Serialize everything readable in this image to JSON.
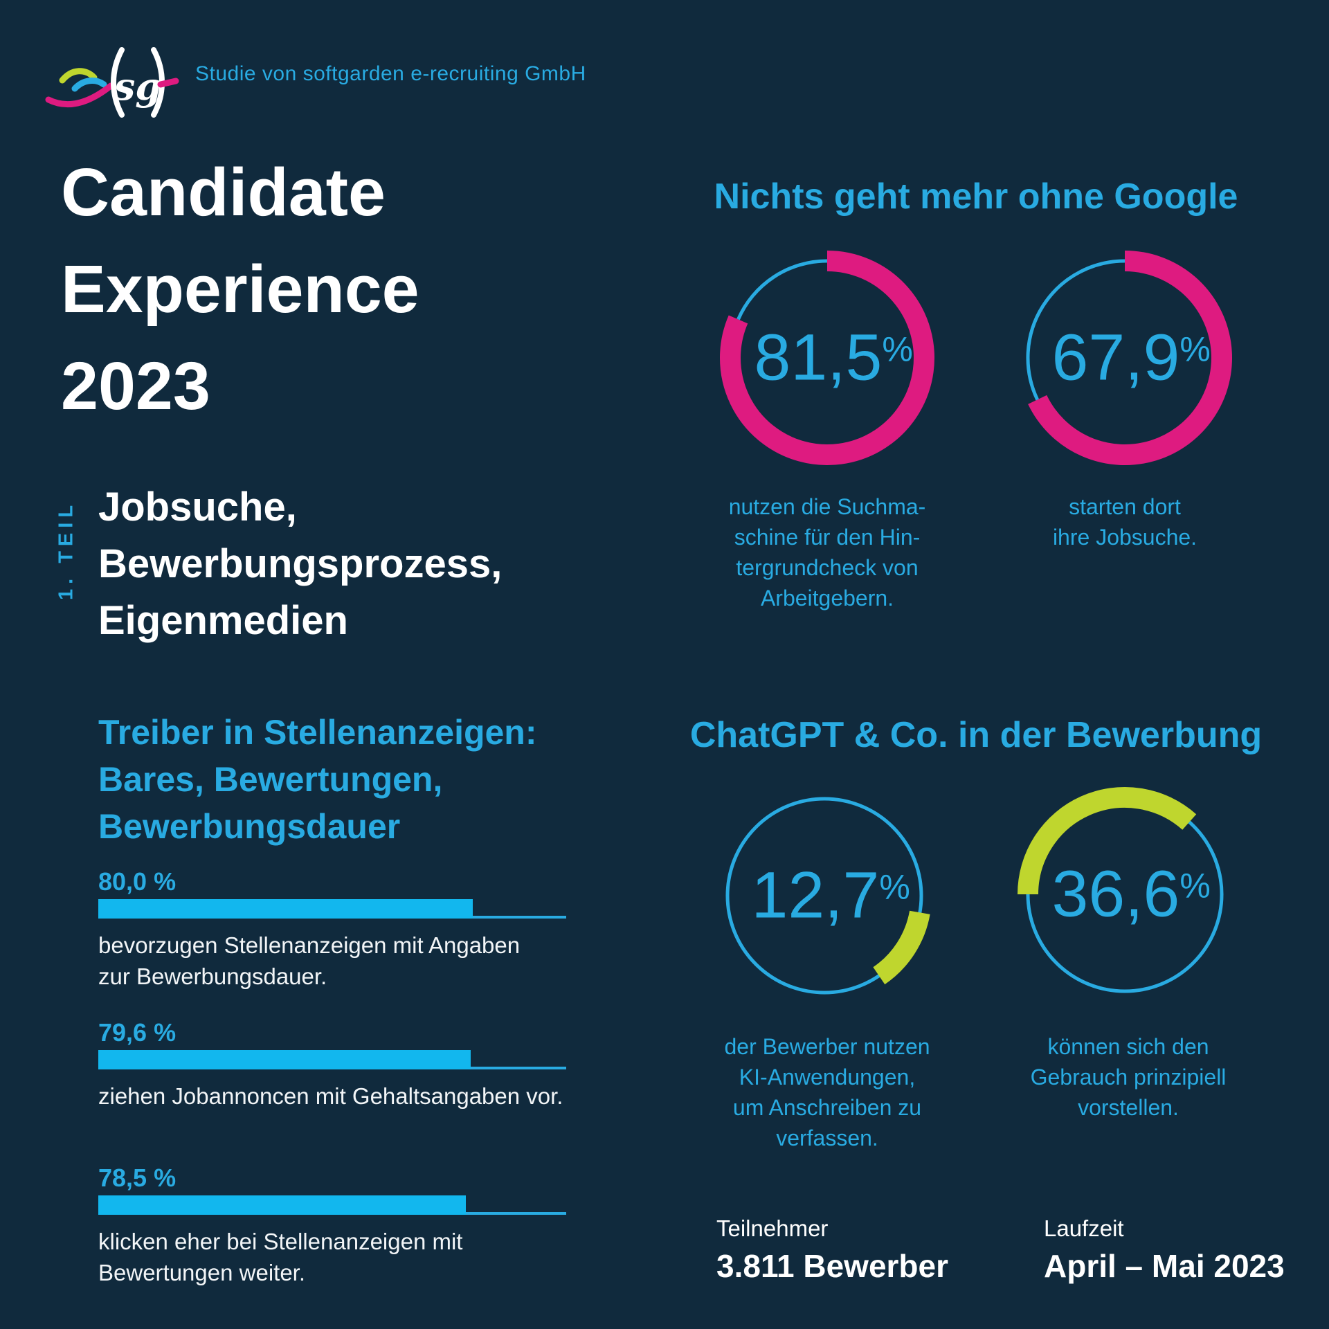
{
  "header": {
    "logo_text": "sg",
    "byline": "Studie von softgarden e-recruiting GmbH"
  },
  "title_lines": [
    "Candidate",
    "Experience",
    "2023"
  ],
  "part_label": "1. TEIL",
  "subtitle_lines": [
    "Jobsuche,",
    "Bewerbungsprozess,",
    "Eigenmedien"
  ],
  "colors": {
    "background": "#102A3D",
    "blue": "#29ABE2",
    "bar_blue": "#12B7EE",
    "pink": "#DE1B80",
    "green": "#BFD62E",
    "white": "#FFFFFF"
  },
  "google": {
    "heading": "Nichts geht mehr ohne Google",
    "donuts": [
      {
        "value": "81,5",
        "unit": "%",
        "pct": 81.5,
        "start_deg": 0,
        "mode": "value-thick-remainder-thin",
        "ring_color": "#DE1B80",
        "caption_lines": [
          "nutzen die Suchma-",
          "schine für den Hin-",
          "tergrundcheck von",
          "Arbeitgebern."
        ]
      },
      {
        "value": "67,9",
        "unit": "%",
        "pct": 67.9,
        "start_deg": 0,
        "mode": "value-thick-remainder-thin",
        "ring_color": "#DE1B80",
        "caption_lines": [
          "starten dort",
          "ihre Jobsuche."
        ]
      }
    ]
  },
  "bars": {
    "heading_lines": [
      "Treiber in Stellenanzeigen:",
      "Bares, Bewertungen,",
      "Bewerbungsdauer"
    ],
    "items": [
      {
        "label": "80,0 %",
        "pct": 80.0,
        "caption_lines": [
          "bevorzugen Stellenanzeigen mit Angaben",
          "zur Bewerbungsdauer."
        ]
      },
      {
        "label": "79,6 %",
        "pct": 79.6,
        "caption_lines": [
          "ziehen Jobannoncen mit Gehaltsangaben vor."
        ]
      },
      {
        "label": "78,5 %",
        "pct": 78.5,
        "caption_lines": [
          "klicken eher bei Stellenanzeigen mit",
          "Bewertungen weiter."
        ]
      }
    ]
  },
  "ai": {
    "heading": "ChatGPT & Co. in der Bewerbung",
    "donuts": [
      {
        "value": "12,7",
        "unit": "%",
        "pct": 12.7,
        "start_deg": 100,
        "mode": "thin-circle-plus-arc",
        "ring_color": "#BFD62E",
        "caption_lines": [
          "der Bewerber nutzen",
          "KI-Anwendungen,",
          "um Anschreiben zu",
          "verfassen."
        ]
      },
      {
        "value": "36,6",
        "unit": "%",
        "pct": 36.6,
        "start_deg": 270,
        "mode": "thin-circle-plus-arc",
        "ring_color": "#BFD62E",
        "caption_lines": [
          "können sich den",
          "Gebrauch prinzipiell",
          "vorstellen."
        ]
      }
    ]
  },
  "footer": {
    "stats": [
      {
        "label": "Teilnehmer",
        "value": "3.811 Bewerber"
      },
      {
        "label": "Laufzeit",
        "value": "April – Mai 2023"
      }
    ]
  },
  "chart_data": [
    {
      "type": "donut",
      "title": "Nichts geht mehr ohne Google",
      "unit": "%",
      "ring_color": "#DE1B80",
      "series": [
        {
          "name": "nutzen die Suchmaschine für den Hintergrundcheck von Arbeitgebern.",
          "value": 81.5
        },
        {
          "name": "starten dort ihre Jobsuche.",
          "value": 67.9
        }
      ]
    },
    {
      "type": "bar",
      "title": "Treiber in Stellenanzeigen: Bares, Bewertungen, Bewerbungsdauer",
      "unit": "%",
      "xlim": [
        0,
        100
      ],
      "bar_color": "#12B7EE",
      "categories": [
        "bevorzugen Stellenanzeigen mit Angaben zur Bewerbungsdauer.",
        "ziehen Jobannoncen mit Gehaltsangaben vor.",
        "klicken eher bei Stellenanzeigen mit Bewertungen weiter."
      ],
      "values": [
        80.0,
        79.6,
        78.5
      ]
    },
    {
      "type": "donut",
      "title": "ChatGPT & Co. in der Bewerbung",
      "unit": "%",
      "ring_color": "#BFD62E",
      "series": [
        {
          "name": "der Bewerber nutzen KI-Anwendungen, um Anschreiben zu verfassen.",
          "value": 12.7
        },
        {
          "name": "können sich den Gebrauch prinzipiell vorstellen.",
          "value": 36.6
        }
      ]
    }
  ]
}
